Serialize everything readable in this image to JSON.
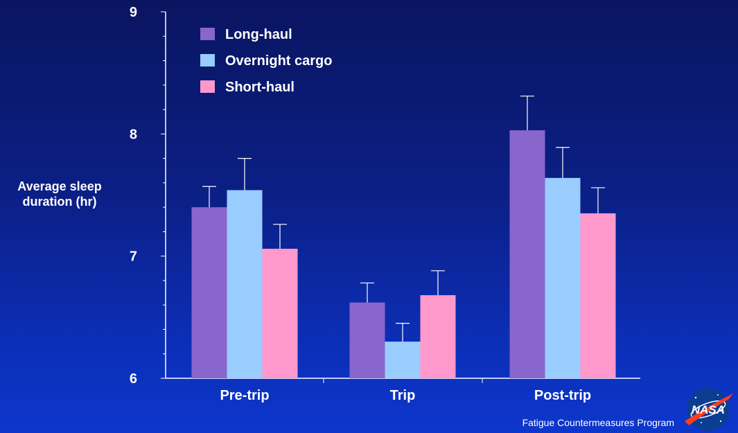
{
  "chart_data": {
    "type": "bar",
    "title": "",
    "xlabel": "",
    "ylabel": "Average sleep duration (hr)",
    "categories": [
      "Pre-trip",
      "Trip",
      "Post-trip"
    ],
    "ylim": [
      6,
      9
    ],
    "yticks": [
      "6",
      "7",
      "8",
      "9"
    ],
    "grid": false,
    "legend_position": "top-left",
    "series": [
      {
        "name": "Long-haul",
        "color": "#8866cc",
        "values": [
          7.4,
          6.62,
          8.03
        ],
        "error": [
          0.17,
          0.16,
          0.28
        ]
      },
      {
        "name": "Overnight cargo",
        "color": "#99ccff",
        "values": [
          7.54,
          6.3,
          7.64
        ],
        "error": [
          0.26,
          0.15,
          0.25
        ]
      },
      {
        "name": "Short-haul",
        "color": "#ff99cc",
        "values": [
          7.06,
          6.68,
          7.35
        ],
        "error": [
          0.2,
          0.2,
          0.21
        ]
      }
    ]
  },
  "footer": {
    "text": "Fatigue Countermeasures Program"
  },
  "logo": {
    "text": "NASA"
  }
}
